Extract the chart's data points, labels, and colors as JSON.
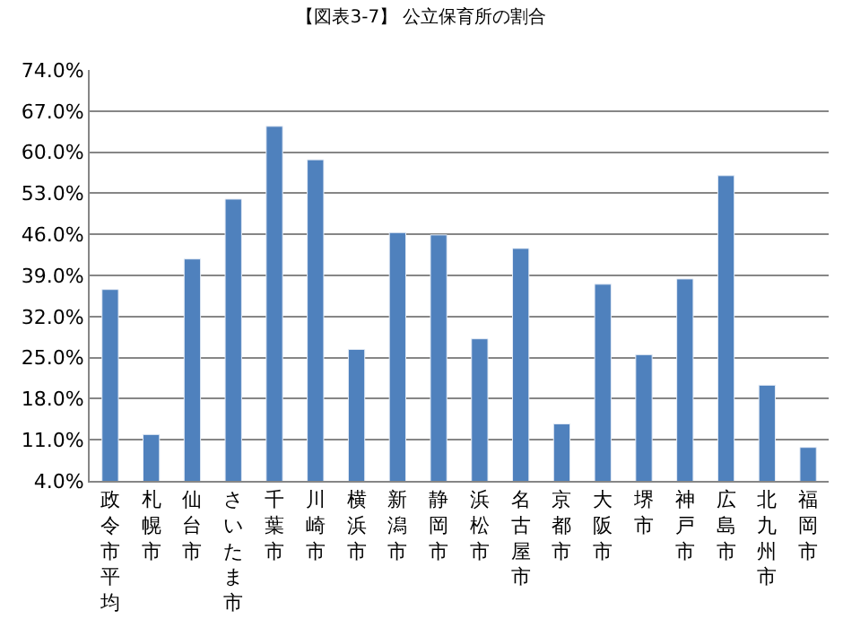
{
  "chart_data": {
    "type": "bar",
    "title": "【図表3-7】 公立保育所の割合",
    "categories": [
      "政令市平均",
      "札幌市",
      "仙台市",
      "さいたま市",
      "千葉市",
      "川崎市",
      "横浜市",
      "新潟市",
      "静岡市",
      "浜松市",
      "名古屋市",
      "京都市",
      "大阪市",
      "堺市",
      "神戸市",
      "広島市",
      "北九州市",
      "福岡市"
    ],
    "values": [
      36.6,
      11.9,
      41.8,
      52.0,
      64.4,
      58.7,
      26.4,
      46.3,
      45.9,
      28.2,
      43.6,
      13.7,
      37.5,
      25.5,
      38.4,
      56.0,
      20.3,
      9.7
    ],
    "color": "#4f81bd",
    "ylim": [
      4,
      74
    ],
    "yticks": [
      {
        "value": 4,
        "label": "4.0%"
      },
      {
        "value": 11,
        "label": "11.0%"
      },
      {
        "value": 18,
        "label": "18.0%"
      },
      {
        "value": 25,
        "label": "25.0%"
      },
      {
        "value": 32,
        "label": "32.0%"
      },
      {
        "value": 39,
        "label": "39.0%"
      },
      {
        "value": 46,
        "label": "46.0%"
      },
      {
        "value": 53,
        "label": "53.0%"
      },
      {
        "value": 60,
        "label": "60.0%"
      },
      {
        "value": 67,
        "label": "67.0%"
      },
      {
        "value": 74,
        "label": "74.0%"
      }
    ],
    "grid": "y"
  }
}
